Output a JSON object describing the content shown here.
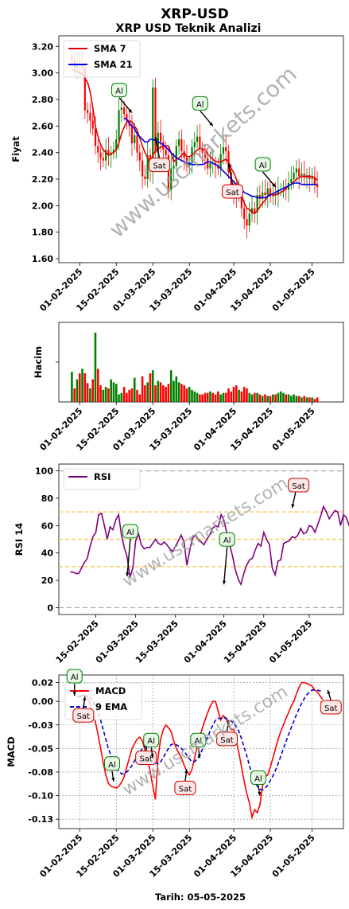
{
  "figure": {
    "title": "XRP-USD",
    "subtitle": "XRP USD Teknik Analizi",
    "watermark": "www.uscmarkets.com",
    "footer": "Tarih: 05-05-2025"
  },
  "colors": {
    "up": "#008000",
    "down": "#ff0000",
    "sma7": "#e00000",
    "sma21": "#0000ee",
    "rsi": "#800080",
    "macd": "#ff0000",
    "signal": "#0000cc",
    "sig_al_bg": "#e6f7e6",
    "sig_al_border": "#008000",
    "sig_sat_bg": "#fde6e6",
    "sig_sat_border": "#cc0000",
    "ref_line": "#f5c542",
    "limit_line": "#aaaaaa"
  },
  "chart_data": [
    {
      "type": "candlestick",
      "name": "price",
      "ylabel": "Fiyat",
      "ylim": [
        1.57,
        3.28
      ],
      "yticks": [
        "1.60",
        "1.80",
        "2.00",
        "2.20",
        "2.40",
        "2.60",
        "2.80",
        "3.00",
        "3.20"
      ],
      "ytick_values": [
        1.6,
        1.8,
        2.0,
        2.2,
        2.4,
        2.6,
        2.8,
        3.0,
        3.2
      ],
      "xticks": [
        "01-02-2025",
        "15-02-2025",
        "01-03-2025",
        "15-03-2025",
        "01-04-2025",
        "15-04-2025",
        "01-05-2025"
      ],
      "x_range": [
        "2025-01-24",
        "2025-05-13"
      ],
      "start_date": "2025-01-29",
      "closes": [
        3.1,
        3.04,
        3.07,
        3.06,
        3.04,
        2.72,
        2.7,
        2.64,
        2.58,
        2.45,
        2.4,
        2.36,
        2.34,
        2.42,
        2.38,
        2.4,
        2.42,
        2.5,
        2.72,
        2.74,
        2.69,
        2.64,
        2.6,
        2.47,
        2.53,
        2.4,
        2.34,
        2.22,
        2.2,
        2.38,
        2.26,
        2.89,
        2.4,
        2.55,
        2.48,
        2.42,
        2.38,
        2.12,
        2.28,
        2.3,
        2.45,
        2.5,
        2.41,
        2.36,
        2.3,
        2.32,
        2.44,
        2.48,
        2.52,
        2.43,
        2.4,
        2.36,
        2.28,
        2.32,
        2.32,
        2.3,
        2.28,
        2.39,
        2.44,
        2.41,
        2.25,
        2.12,
        2.09,
        2.08,
        2.1,
        1.98,
        1.9,
        1.85,
        1.94,
        1.98,
        1.95,
        2.08,
        2.05,
        2.1,
        2.08,
        2.13,
        2.07,
        2.09,
        2.08,
        2.12,
        2.12,
        2.13,
        2.12,
        2.17,
        2.2,
        2.25,
        2.28,
        2.22,
        2.24,
        2.21,
        2.23,
        2.2,
        2.21,
        2.16,
        2.14
      ],
      "sma7": [
        3.03,
        3.02,
        3.01,
        3.0,
        2.99,
        2.96,
        2.93,
        2.86,
        2.74,
        2.6,
        2.52,
        2.46,
        2.42,
        2.4,
        2.38,
        2.39,
        2.4,
        2.42,
        2.47,
        2.54,
        2.59,
        2.63,
        2.64,
        2.63,
        2.6,
        2.57,
        2.51,
        2.45,
        2.4,
        2.36,
        2.32,
        2.38,
        2.41,
        2.43,
        2.44,
        2.45,
        2.45,
        2.45,
        2.4,
        2.33,
        2.35,
        2.36,
        2.38,
        2.4,
        2.37,
        2.37,
        2.38,
        2.4,
        2.42,
        2.43,
        2.43,
        2.42,
        2.39,
        2.37,
        2.35,
        2.33,
        2.33,
        2.33,
        2.34,
        2.35,
        2.33,
        2.28,
        2.25,
        2.2,
        2.14,
        2.08,
        2.02,
        1.98,
        1.97,
        1.95,
        1.94,
        1.96,
        1.99,
        2.02,
        2.04,
        2.07,
        2.09,
        2.08,
        2.08,
        2.09,
        2.1,
        2.11,
        2.13,
        2.15,
        2.16,
        2.18,
        2.2,
        2.21,
        2.22,
        2.22,
        2.22,
        2.22,
        2.22,
        2.21,
        2.19
      ],
      "sma21_start": 20,
      "sma21": [
        2.66,
        2.65,
        2.62,
        2.6,
        2.58,
        2.54,
        2.52,
        2.5,
        2.48,
        2.48,
        2.5,
        2.5,
        2.49,
        2.48,
        2.47,
        2.46,
        2.44,
        2.42,
        2.4,
        2.38,
        2.36,
        2.35,
        2.34,
        2.33,
        2.32,
        2.32,
        2.31,
        2.31,
        2.31,
        2.31,
        2.31,
        2.32,
        2.33,
        2.33,
        2.32,
        2.31,
        2.3,
        2.28,
        2.26,
        2.24,
        2.22,
        2.2,
        2.18,
        2.16,
        2.14,
        2.12,
        2.1,
        2.09,
        2.08,
        2.07,
        2.07,
        2.06,
        2.06,
        2.06,
        2.06,
        2.07,
        2.08,
        2.09,
        2.1,
        2.11,
        2.12,
        2.13,
        2.14,
        2.15,
        2.16,
        2.17,
        2.17,
        2.17,
        2.16,
        2.16,
        2.16,
        2.16,
        2.16,
        2.16,
        2.16
      ],
      "legend": [
        "SMA 7",
        "SMA 21"
      ],
      "signals": [
        {
          "label": "Al",
          "date": "2025-02-21",
          "price": 2.7
        },
        {
          "label": "Sat",
          "date": "2025-03-02",
          "price": 2.52
        },
        {
          "label": "Al",
          "date": "2025-03-24",
          "price": 2.6
        },
        {
          "label": "Sat",
          "date": "2025-03-30",
          "price": 2.32
        },
        {
          "label": "Al",
          "date": "2025-04-17",
          "price": 2.14
        }
      ]
    },
    {
      "type": "bar",
      "name": "volume",
      "ylabel": "Hacim",
      "xticks": [
        "01-02-2025",
        "15-02-2025",
        "01-03-2025",
        "15-03-2025",
        "01-04-2025",
        "15-04-2025",
        "01-05-2025"
      ],
      "x_range": [
        "2025-01-24",
        "2025-05-13"
      ],
      "start_date": "2025-01-29",
      "values": [
        40,
        18,
        30,
        38,
        44,
        38,
        25,
        18,
        30,
        92,
        44,
        22,
        16,
        20,
        18,
        30,
        26,
        24,
        10,
        12,
        20,
        12,
        16,
        18,
        32,
        16,
        10,
        34,
        22,
        26,
        38,
        42,
        22,
        28,
        26,
        22,
        20,
        24,
        42,
        28,
        34,
        26,
        24,
        22,
        18,
        20,
        16,
        14,
        12,
        10,
        10,
        12,
        12,
        14,
        12,
        10,
        14,
        10,
        12,
        12,
        18,
        14,
        20,
        22,
        16,
        14,
        20,
        18,
        12,
        10,
        12,
        12,
        10,
        8,
        10,
        8,
        8,
        10,
        10,
        12,
        14,
        12,
        10,
        10,
        8,
        10,
        8,
        8,
        6,
        8,
        6,
        6,
        6,
        4,
        6
      ],
      "up": [
        1,
        0,
        1,
        0,
        1,
        0,
        0,
        1,
        0,
        1,
        0,
        0,
        1,
        1,
        0,
        1,
        1,
        1,
        1,
        1,
        0,
        0,
        0,
        0,
        1,
        0,
        0,
        0,
        0,
        1,
        0,
        1,
        0,
        1,
        0,
        0,
        0,
        0,
        1,
        1,
        1,
        1,
        0,
        0,
        0,
        1,
        1,
        1,
        1,
        0,
        0,
        0,
        0,
        1,
        0,
        0,
        0,
        1,
        1,
        0,
        0,
        0,
        0,
        0,
        1,
        0,
        0,
        0,
        1,
        1,
        0,
        1,
        0,
        1,
        0,
        1,
        0,
        1,
        0,
        1,
        1,
        1,
        0,
        1,
        1,
        1,
        1,
        0,
        1,
        0,
        1,
        0,
        1,
        0,
        0
      ]
    },
    {
      "type": "line",
      "name": "rsi",
      "ylabel": "RSI 14",
      "ylim": [
        -5,
        105
      ],
      "yticks": [
        "0",
        "20",
        "40",
        "60",
        "80",
        "100"
      ],
      "ytick_values": [
        0,
        20,
        40,
        60,
        80,
        100
      ],
      "xticks": [
        "15-02-2025",
        "01-03-2025",
        "15-03-2025",
        "01-04-2025",
        "15-04-2025",
        "01-05-2025"
      ],
      "x_range": [
        "2025-02-02",
        "2025-05-13"
      ],
      "start_date": "2025-02-06",
      "values": [
        26,
        26,
        25,
        25,
        29,
        33,
        36,
        45,
        52,
        55,
        68,
        69,
        60,
        50,
        59,
        57,
        64,
        68,
        53,
        44,
        37,
        22,
        29,
        49,
        54,
        46,
        43,
        44,
        44,
        47,
        50,
        47,
        46,
        48,
        46,
        43,
        41,
        45,
        49,
        53,
        48,
        31,
        42,
        51,
        53,
        50,
        48,
        46,
        50,
        53,
        58,
        60,
        59,
        68,
        64,
        55,
        46,
        38,
        28,
        21,
        17,
        25,
        31,
        35,
        36,
        42,
        47,
        45,
        55,
        50,
        46,
        29,
        24,
        34,
        35,
        47,
        48,
        49,
        52,
        51,
        53,
        58,
        54,
        55,
        60,
        59,
        55,
        61,
        67,
        74,
        70,
        65,
        68,
        71,
        70,
        60,
        68,
        66,
        60,
        63,
        62,
        57,
        55
      ],
      "legend": [
        "RSI"
      ],
      "ref_lines": [
        30,
        50,
        70
      ],
      "limit_lines": [
        0,
        100
      ],
      "signals": [
        {
          "label": "Al",
          "date": "2025-02-26",
          "value": 23
        },
        {
          "label": "Al",
          "date": "2025-04-01",
          "value": 17
        },
        {
          "label": "Sat",
          "date": "2025-04-25",
          "value": 73
        }
      ]
    },
    {
      "type": "line",
      "name": "macd",
      "ylabel": "MACD",
      "ylim": [
        -0.135,
        0.028
      ],
      "yticks": [
        "0.02",
        "0.00",
        "-0.03",
        "-0.05",
        "-0.08",
        "-0.10",
        "-0.13"
      ],
      "ytick_values": [
        0.02,
        0.0,
        -0.025,
        -0.05,
        -0.075,
        -0.1,
        -0.125
      ],
      "xticks": [
        "01-02-2025",
        "15-02-2025",
        "01-03-2025",
        "15-03-2025",
        "01-04-2025",
        "15-04-2025",
        "01-05-2025"
      ],
      "x_range": [
        "2025-01-24",
        "2025-05-13"
      ],
      "start_date": "2025-01-31",
      "macd": [
        0.005,
        0.005,
        0.006,
        0.007,
        0.004,
        -0.003,
        -0.012,
        -0.022,
        -0.035,
        -0.05,
        -0.065,
        -0.078,
        -0.087,
        -0.09,
        -0.091,
        -0.092,
        -0.09,
        -0.086,
        -0.08,
        -0.07,
        -0.06,
        -0.05,
        -0.045,
        -0.04,
        -0.038,
        -0.042,
        -0.052,
        -0.062,
        -0.075,
        -0.09,
        -0.104,
        -0.06,
        -0.04,
        -0.03,
        -0.025,
        -0.028,
        -0.032,
        -0.042,
        -0.05,
        -0.055,
        -0.06,
        -0.068,
        -0.074,
        -0.078,
        -0.072,
        -0.06,
        -0.048,
        -0.038,
        -0.028,
        -0.02,
        -0.012,
        -0.005,
        0.0,
        0.0,
        -0.01,
        -0.02,
        -0.015,
        -0.018,
        -0.025,
        -0.03,
        -0.03,
        -0.042,
        -0.055,
        -0.07,
        -0.085,
        -0.098,
        -0.108,
        -0.123,
        -0.115,
        -0.118,
        -0.11,
        -0.09,
        -0.08,
        -0.078,
        -0.07,
        -0.06,
        -0.05,
        -0.04,
        -0.032,
        -0.025,
        -0.018,
        -0.012,
        -0.005,
        0.0,
        0.008,
        0.015,
        0.02,
        0.02,
        0.019,
        0.018,
        0.016,
        0.012,
        0.01,
        0.006,
        0.002
      ],
      "signal": [
        0.005,
        0.005,
        0.005,
        0.006,
        0.006,
        0.004,
        0.0,
        -0.005,
        -0.012,
        -0.02,
        -0.03,
        -0.04,
        -0.05,
        -0.058,
        -0.065,
        -0.071,
        -0.074,
        -0.077,
        -0.077,
        -0.075,
        -0.072,
        -0.068,
        -0.063,
        -0.058,
        -0.054,
        -0.05,
        -0.048,
        -0.051,
        -0.056,
        -0.061,
        -0.065,
        -0.066,
        -0.064,
        -0.06,
        -0.054,
        -0.05,
        -0.046,
        -0.045,
        -0.046,
        -0.048,
        -0.05,
        -0.053,
        -0.057,
        -0.061,
        -0.064,
        -0.064,
        -0.061,
        -0.057,
        -0.051,
        -0.045,
        -0.038,
        -0.031,
        -0.025,
        -0.02,
        -0.018,
        -0.018,
        -0.017,
        -0.018,
        -0.019,
        -0.021,
        -0.023,
        -0.027,
        -0.032,
        -0.04,
        -0.049,
        -0.058,
        -0.068,
        -0.078,
        -0.085,
        -0.09,
        -0.093,
        -0.094,
        -0.092,
        -0.089,
        -0.084,
        -0.079,
        -0.073,
        -0.066,
        -0.058,
        -0.05,
        -0.043,
        -0.035,
        -0.028,
        -0.021,
        -0.014,
        -0.008,
        -0.002,
        0.003,
        0.007,
        0.01,
        0.012,
        0.012,
        0.012,
        0.011,
        0.01
      ],
      "legend": [
        "MACD",
        "9 EMA"
      ],
      "signals": [
        {
          "label": "Al",
          "date": "2025-01-30",
          "value": 0.006
        },
        {
          "label": "Sat",
          "date": "2025-02-03",
          "value": 0.005
        },
        {
          "label": "Al",
          "date": "2025-02-14",
          "value": -0.085
        },
        {
          "label": "Sat",
          "date": "2025-02-27",
          "value": -0.04
        },
        {
          "label": "Al",
          "date": "2025-03-01",
          "value": -0.06
        },
        {
          "label": "Sat",
          "date": "2025-03-14",
          "value": -0.072
        },
        {
          "label": "Al",
          "date": "2025-03-19",
          "value": -0.06
        },
        {
          "label": "Sat",
          "date": "2025-03-30",
          "value": -0.02
        },
        {
          "label": "Al",
          "date": "2025-04-11",
          "value": -0.1
        },
        {
          "label": "Sat",
          "date": "2025-05-07",
          "value": 0.012
        }
      ]
    }
  ]
}
